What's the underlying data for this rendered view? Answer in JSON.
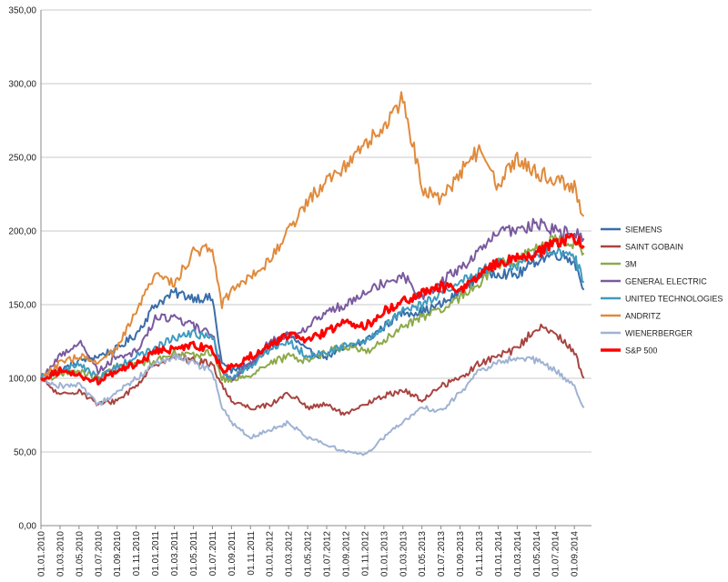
{
  "chart_data": {
    "type": "line",
    "title": "",
    "xlabel": "",
    "ylabel": "",
    "ylim": [
      0,
      350
    ],
    "y_ticks": [
      "0,00",
      "50,00",
      "100,00",
      "150,00",
      "200,00",
      "250,00",
      "300,00",
      "350,00"
    ],
    "x_ticks": [
      "01.01.2010",
      "01.03.2010",
      "01.05.2010",
      "01.07.2010",
      "01.09.2010",
      "01.11.2010",
      "01.01.2011",
      "01.03.2011",
      "01.05.2011",
      "01.07.2011",
      "01.09.2011",
      "01.11.2011",
      "01.01.2012",
      "01.03.2012",
      "01.05.2012",
      "01.07.2012",
      "01.09.2012",
      "01.11.2012",
      "01.01.2013",
      "01.03.2013",
      "01.05.2013",
      "01.07.2013",
      "01.09.2013",
      "01.11.2013",
      "01.01.2014",
      "01.03.2014",
      "01.05.2014",
      "01.07.2014",
      "01.09.2014"
    ],
    "grid": true,
    "legend_position": "right",
    "series": [
      {
        "name": "SIEMENS",
        "color": "#3a6ea8",
        "width": 2,
        "x": [
          "2010-01",
          "2010-03",
          "2010-05",
          "2010-07",
          "2010-09",
          "2010-11",
          "2011-01",
          "2011-03",
          "2011-05",
          "2011-07",
          "2011-08",
          "2011-09",
          "2011-11",
          "2012-01",
          "2012-03",
          "2012-05",
          "2012-07",
          "2012-09",
          "2012-11",
          "2013-01",
          "2013-03",
          "2013-05",
          "2013-07",
          "2013-09",
          "2013-11",
          "2014-01",
          "2014-03",
          "2014-05",
          "2014-07",
          "2014-09",
          "2014-10"
        ],
        "values": [
          100,
          105,
          112,
          115,
          120,
          130,
          150,
          158,
          155,
          154,
          110,
          105,
          110,
          120,
          130,
          118,
          115,
          120,
          125,
          135,
          145,
          145,
          150,
          158,
          170,
          172,
          170,
          180,
          185,
          180,
          160
        ]
      },
      {
        "name": "SAINT GOBAIN",
        "color": "#a84440",
        "width": 2,
        "x": [
          "2010-01",
          "2010-03",
          "2010-05",
          "2010-07",
          "2010-09",
          "2010-11",
          "2011-01",
          "2011-03",
          "2011-05",
          "2011-07",
          "2011-08",
          "2011-09",
          "2011-11",
          "2012-01",
          "2012-03",
          "2012-05",
          "2012-07",
          "2012-09",
          "2012-11",
          "2013-01",
          "2013-03",
          "2013-05",
          "2013-07",
          "2013-09",
          "2013-11",
          "2014-01",
          "2014-03",
          "2014-05",
          "2014-07",
          "2014-09",
          "2014-10"
        ],
        "values": [
          100,
          88,
          92,
          82,
          85,
          95,
          110,
          115,
          112,
          110,
          95,
          85,
          80,
          82,
          90,
          80,
          82,
          75,
          82,
          88,
          92,
          85,
          95,
          100,
          110,
          115,
          120,
          135,
          130,
          118,
          100
        ]
      },
      {
        "name": "3M",
        "color": "#8caa4a",
        "width": 2,
        "x": [
          "2010-01",
          "2010-03",
          "2010-05",
          "2010-07",
          "2010-09",
          "2010-11",
          "2011-01",
          "2011-03",
          "2011-05",
          "2011-07",
          "2011-08",
          "2011-09",
          "2011-11",
          "2012-01",
          "2012-03",
          "2012-05",
          "2012-07",
          "2012-09",
          "2012-11",
          "2013-01",
          "2013-03",
          "2013-05",
          "2013-07",
          "2013-09",
          "2013-11",
          "2014-01",
          "2014-03",
          "2014-05",
          "2014-07",
          "2014-09",
          "2014-10"
        ],
        "values": [
          100,
          102,
          105,
          100,
          108,
          110,
          112,
          118,
          115,
          118,
          100,
          98,
          103,
          110,
          115,
          112,
          118,
          122,
          118,
          125,
          135,
          142,
          145,
          155,
          165,
          178,
          180,
          188,
          195,
          192,
          185
        ]
      },
      {
        "name": "GENERAL ELECTRIC",
        "color": "#7a5a9e",
        "width": 2,
        "x": [
          "2010-01",
          "2010-03",
          "2010-05",
          "2010-07",
          "2010-09",
          "2010-11",
          "2011-01",
          "2011-03",
          "2011-05",
          "2011-07",
          "2011-08",
          "2011-09",
          "2011-11",
          "2012-01",
          "2012-03",
          "2012-05",
          "2012-07",
          "2012-09",
          "2012-11",
          "2013-01",
          "2013-03",
          "2013-05",
          "2013-07",
          "2013-09",
          "2013-11",
          "2014-01",
          "2014-03",
          "2014-05",
          "2014-07",
          "2014-09",
          "2014-10"
        ],
        "values": [
          100,
          115,
          125,
          105,
          115,
          118,
          140,
          142,
          135,
          130,
          105,
          100,
          110,
          125,
          130,
          135,
          145,
          150,
          160,
          165,
          170,
          155,
          165,
          175,
          185,
          200,
          200,
          205,
          200,
          198,
          195
        ]
      },
      {
        "name": "UNITED TECHNOLOGIES",
        "color": "#3f9bbf",
        "width": 2,
        "x": [
          "2010-01",
          "2010-03",
          "2010-05",
          "2010-07",
          "2010-09",
          "2010-11",
          "2011-01",
          "2011-03",
          "2011-05",
          "2011-07",
          "2011-08",
          "2011-09",
          "2011-11",
          "2012-01",
          "2012-03",
          "2012-05",
          "2012-07",
          "2012-09",
          "2012-11",
          "2013-01",
          "2013-03",
          "2013-05",
          "2013-07",
          "2013-09",
          "2013-11",
          "2014-01",
          "2014-03",
          "2014-05",
          "2014-07",
          "2014-09",
          "2014-10"
        ],
        "values": [
          100,
          105,
          110,
          100,
          108,
          115,
          120,
          128,
          130,
          128,
          105,
          100,
          108,
          120,
          125,
          115,
          118,
          122,
          125,
          135,
          145,
          150,
          158,
          165,
          172,
          178,
          175,
          185,
          188,
          182,
          165
        ]
      },
      {
        "name": "ANDRITZ",
        "color": "#e08a3c",
        "width": 2,
        "x": [
          "2010-01",
          "2010-03",
          "2010-05",
          "2010-07",
          "2010-09",
          "2010-11",
          "2011-01",
          "2011-03",
          "2011-05",
          "2011-07",
          "2011-08",
          "2011-09",
          "2011-11",
          "2012-01",
          "2012-03",
          "2012-05",
          "2012-07",
          "2012-09",
          "2012-11",
          "2013-01",
          "2013-03",
          "2013-05",
          "2013-07",
          "2013-09",
          "2013-11",
          "2014-01",
          "2014-03",
          "2014-05",
          "2014-07",
          "2014-09",
          "2014-10"
        ],
        "values": [
          100,
          110,
          115,
          110,
          120,
          145,
          170,
          165,
          185,
          190,
          150,
          160,
          170,
          180,
          200,
          220,
          235,
          245,
          260,
          270,
          290,
          230,
          220,
          240,
          255,
          230,
          250,
          240,
          235,
          230,
          210
        ]
      },
      {
        "name": "WIENERBERGER",
        "color": "#9fb3d3",
        "width": 2,
        "x": [
          "2010-01",
          "2010-03",
          "2010-05",
          "2010-07",
          "2010-09",
          "2010-11",
          "2011-01",
          "2011-03",
          "2011-05",
          "2011-07",
          "2011-08",
          "2011-09",
          "2011-11",
          "2012-01",
          "2012-03",
          "2012-05",
          "2012-07",
          "2012-09",
          "2012-11",
          "2013-01",
          "2013-03",
          "2013-05",
          "2013-07",
          "2013-09",
          "2013-11",
          "2014-01",
          "2014-03",
          "2014-05",
          "2014-07",
          "2014-09",
          "2014-10"
        ],
        "values": [
          100,
          95,
          95,
          82,
          90,
          100,
          110,
          115,
          110,
          105,
          80,
          70,
          60,
          65,
          70,
          60,
          55,
          50,
          48,
          60,
          70,
          80,
          78,
          90,
          105,
          110,
          115,
          112,
          105,
          95,
          80
        ]
      },
      {
        "name": "S&P 500",
        "color": "#ff0000",
        "width": 3,
        "x": [
          "2010-01",
          "2010-03",
          "2010-05",
          "2010-07",
          "2010-09",
          "2010-11",
          "2011-01",
          "2011-03",
          "2011-05",
          "2011-07",
          "2011-08",
          "2011-09",
          "2011-11",
          "2012-01",
          "2012-03",
          "2012-05",
          "2012-07",
          "2012-09",
          "2012-11",
          "2013-01",
          "2013-03",
          "2013-05",
          "2013-07",
          "2013-09",
          "2013-11",
          "2014-01",
          "2014-03",
          "2014-05",
          "2014-07",
          "2014-09",
          "2014-10"
        ],
        "values": [
          100,
          105,
          102,
          98,
          105,
          110,
          118,
          120,
          122,
          120,
          105,
          108,
          115,
          122,
          130,
          125,
          132,
          138,
          135,
          145,
          152,
          158,
          162,
          160,
          170,
          178,
          182,
          185,
          192,
          195,
          190
        ]
      }
    ]
  }
}
